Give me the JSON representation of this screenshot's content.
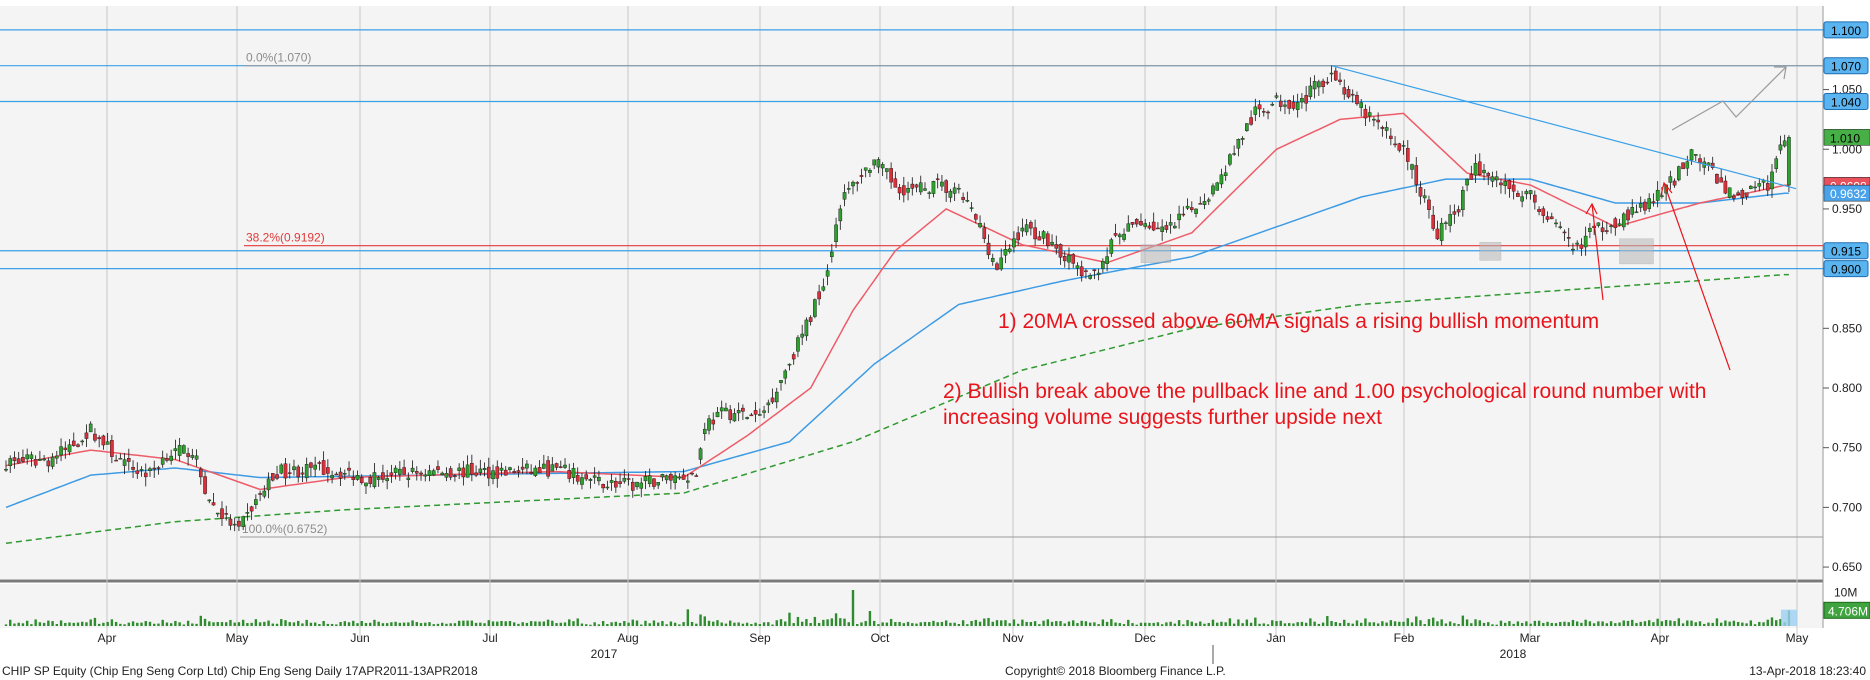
{
  "colors": {
    "up": "#2ea02e",
    "down": "#d8313c",
    "ma20": "#ee5c68",
    "ma60": "#3e9be3",
    "ma200": "#2f9a2f",
    "hline_blue": "#3aa0e8",
    "fib_red": "#e23a3a",
    "fib_grey": "#9a9a9a",
    "annotation": "#e8151c",
    "plot_bg": "#f4f4f4"
  },
  "chart_data": {
    "type": "candlestick",
    "security": "CHIP SP Equity",
    "price_ylim": [
      0.64,
      1.12
    ],
    "price_ticks": [
      "1.100",
      "1.050",
      "1.000",
      "0.950",
      "0.900",
      "0.850",
      "0.800",
      "0.750",
      "0.700",
      "0.650"
    ],
    "month_labels": [
      "Apr",
      "May",
      "Jun",
      "Jul",
      "Aug",
      "Sep",
      "Oct",
      "Nov",
      "Dec",
      "Jan",
      "Feb",
      "Mar",
      "Apr",
      "May"
    ],
    "year_labels": [
      "2017",
      "2018"
    ],
    "horizontal_levels": [
      {
        "value": 1.1,
        "label": "1.100",
        "kind": "blue"
      },
      {
        "value": 1.07,
        "label": "1.070",
        "kind": "blue"
      },
      {
        "value": 1.04,
        "label": "1.040",
        "kind": "blue"
      },
      {
        "value": 0.915,
        "label": "0.915",
        "kind": "blue"
      },
      {
        "value": 0.9,
        "label": "0.900",
        "kind": "blue"
      }
    ],
    "fibonacci": [
      {
        "value": 1.07,
        "label": "0.0%(1.070)"
      },
      {
        "value": 0.9192,
        "label": "38.2%(0.9192)"
      },
      {
        "value": 0.6752,
        "label": "100.0%(0.6752)"
      }
    ],
    "last_labels": [
      {
        "value": 1.01,
        "label": "1.010",
        "kind": "up"
      },
      {
        "value": 0.9698,
        "label": "0.9698",
        "kind": "ma20"
      },
      {
        "value": 0.9632,
        "label": "0.9632",
        "kind": "ma60"
      }
    ],
    "anchors": [
      {
        "d": 0,
        "p": 0.738
      },
      {
        "d": 10,
        "p": 0.74
      },
      {
        "d": 15,
        "p": 0.75
      },
      {
        "d": 20,
        "p": 0.765
      },
      {
        "d": 28,
        "p": 0.735
      },
      {
        "d": 34,
        "p": 0.728
      },
      {
        "d": 38,
        "p": 0.745
      },
      {
        "d": 44,
        "p": 0.748
      },
      {
        "d": 48,
        "p": 0.705
      },
      {
        "d": 52,
        "p": 0.69
      },
      {
        "d": 55,
        "p": 0.68
      },
      {
        "d": 58,
        "p": 0.7
      },
      {
        "d": 64,
        "p": 0.73
      },
      {
        "d": 75,
        "p": 0.732
      },
      {
        "d": 85,
        "p": 0.725
      },
      {
        "d": 100,
        "p": 0.73
      },
      {
        "d": 120,
        "p": 0.73
      },
      {
        "d": 130,
        "p": 0.732
      },
      {
        "d": 138,
        "p": 0.722
      },
      {
        "d": 148,
        "p": 0.718
      },
      {
        "d": 156,
        "p": 0.725
      },
      {
        "d": 163,
        "p": 0.728
      },
      {
        "d": 165,
        "p": 0.77
      },
      {
        "d": 170,
        "p": 0.78
      },
      {
        "d": 178,
        "p": 0.775
      },
      {
        "d": 182,
        "p": 0.8
      },
      {
        "d": 190,
        "p": 0.86
      },
      {
        "d": 194,
        "p": 0.9
      },
      {
        "d": 197,
        "p": 0.955
      },
      {
        "d": 201,
        "p": 0.975
      },
      {
        "d": 205,
        "p": 0.99
      },
      {
        "d": 210,
        "p": 0.97
      },
      {
        "d": 214,
        "p": 0.965
      },
      {
        "d": 220,
        "p": 0.97
      },
      {
        "d": 226,
        "p": 0.96
      },
      {
        "d": 230,
        "p": 0.935
      },
      {
        "d": 234,
        "p": 0.9
      },
      {
        "d": 240,
        "p": 0.935
      },
      {
        "d": 246,
        "p": 0.925
      },
      {
        "d": 250,
        "p": 0.91
      },
      {
        "d": 256,
        "p": 0.89
      },
      {
        "d": 262,
        "p": 0.925
      },
      {
        "d": 268,
        "p": 0.94
      },
      {
        "d": 274,
        "p": 0.93
      },
      {
        "d": 280,
        "p": 0.95
      },
      {
        "d": 286,
        "p": 0.97
      },
      {
        "d": 290,
        "p": 1.0
      },
      {
        "d": 295,
        "p": 1.03
      },
      {
        "d": 300,
        "p": 1.04
      },
      {
        "d": 306,
        "p": 1.04
      },
      {
        "d": 310,
        "p": 1.055
      },
      {
        "d": 313,
        "p": 1.065
      },
      {
        "d": 318,
        "p": 1.04
      },
      {
        "d": 324,
        "p": 1.02
      },
      {
        "d": 330,
        "p": 1.0
      },
      {
        "d": 334,
        "p": 0.965
      },
      {
        "d": 338,
        "p": 0.93
      },
      {
        "d": 342,
        "p": 0.945
      },
      {
        "d": 347,
        "p": 0.985
      },
      {
        "d": 354,
        "p": 0.97
      },
      {
        "d": 360,
        "p": 0.96
      },
      {
        "d": 366,
        "p": 0.935
      },
      {
        "d": 370,
        "p": 0.915
      },
      {
        "d": 374,
        "p": 0.93
      },
      {
        "d": 380,
        "p": 0.94
      },
      {
        "d": 386,
        "p": 0.95
      },
      {
        "d": 390,
        "p": 0.96
      },
      {
        "d": 394,
        "p": 0.975
      },
      {
        "d": 398,
        "p": 1.0
      },
      {
        "d": 403,
        "p": 0.98
      },
      {
        "d": 408,
        "p": 0.96
      },
      {
        "d": 412,
        "p": 0.965
      },
      {
        "d": 416,
        "p": 0.97
      },
      {
        "d": 420,
        "p": 1.01
      }
    ],
    "ma_anchors": {
      "ma20": [
        {
          "d": 0,
          "p": 0.735
        },
        {
          "d": 20,
          "p": 0.748
        },
        {
          "d": 40,
          "p": 0.74
        },
        {
          "d": 60,
          "p": 0.715
        },
        {
          "d": 80,
          "p": 0.725
        },
        {
          "d": 130,
          "p": 0.73
        },
        {
          "d": 160,
          "p": 0.725
        },
        {
          "d": 175,
          "p": 0.76
        },
        {
          "d": 190,
          "p": 0.8
        },
        {
          "d": 200,
          "p": 0.865
        },
        {
          "d": 210,
          "p": 0.915
        },
        {
          "d": 222,
          "p": 0.95
        },
        {
          "d": 240,
          "p": 0.92
        },
        {
          "d": 260,
          "p": 0.905
        },
        {
          "d": 280,
          "p": 0.93
        },
        {
          "d": 300,
          "p": 1.0
        },
        {
          "d": 315,
          "p": 1.025
        },
        {
          "d": 330,
          "p": 1.03
        },
        {
          "d": 345,
          "p": 0.98
        },
        {
          "d": 360,
          "p": 0.97
        },
        {
          "d": 380,
          "p": 0.935
        },
        {
          "d": 400,
          "p": 0.955
        },
        {
          "d": 420,
          "p": 0.9698
        }
      ],
      "ma60": [
        {
          "d": 0,
          "p": 0.7
        },
        {
          "d": 20,
          "p": 0.727
        },
        {
          "d": 40,
          "p": 0.733
        },
        {
          "d": 60,
          "p": 0.725
        },
        {
          "d": 100,
          "p": 0.727
        },
        {
          "d": 160,
          "p": 0.73
        },
        {
          "d": 185,
          "p": 0.755
        },
        {
          "d": 205,
          "p": 0.82
        },
        {
          "d": 225,
          "p": 0.87
        },
        {
          "d": 250,
          "p": 0.89
        },
        {
          "d": 280,
          "p": 0.91
        },
        {
          "d": 300,
          "p": 0.935
        },
        {
          "d": 320,
          "p": 0.96
        },
        {
          "d": 340,
          "p": 0.975
        },
        {
          "d": 360,
          "p": 0.975
        },
        {
          "d": 380,
          "p": 0.955
        },
        {
          "d": 400,
          "p": 0.955
        },
        {
          "d": 420,
          "p": 0.9632
        }
      ],
      "ma200": [
        {
          "d": 0,
          "p": 0.67
        },
        {
          "d": 40,
          "p": 0.688
        },
        {
          "d": 80,
          "p": 0.698
        },
        {
          "d": 120,
          "p": 0.705
        },
        {
          "d": 160,
          "p": 0.712
        },
        {
          "d": 200,
          "p": 0.755
        },
        {
          "d": 240,
          "p": 0.815
        },
        {
          "d": 280,
          "p": 0.85
        },
        {
          "d": 320,
          "p": 0.87
        },
        {
          "d": 360,
          "p": 0.88
        },
        {
          "d": 420,
          "p": 0.895
        }
      ]
    },
    "volume_ylim": [
      0,
      12
    ],
    "volume_tick": "10M",
    "volume_last": "4.706M",
    "annotations": [
      "1) 20MA crossed above 60MA signals a rising bullish momentum",
      "2) Bullish break above the pullback line and 1.00 psychological round number with",
      "increasing volume suggests further upside next"
    ]
  },
  "footer": {
    "left": "CHIP SP Equity (Chip Eng Seng Corp Ltd) Chip Eng Seng  Daily 17APR2011-13APR2018",
    "center": "Copyright© 2018 Bloomberg Finance L.P.",
    "right": "13-Apr-2018 18:23:40"
  }
}
